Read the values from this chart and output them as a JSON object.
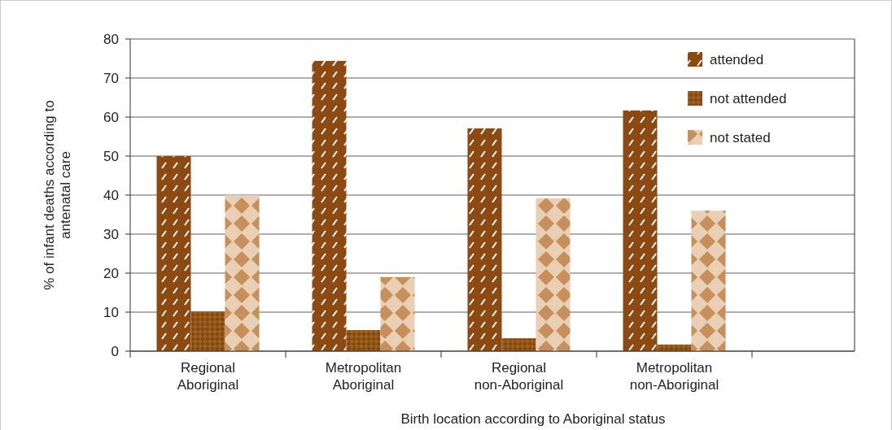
{
  "chart_data": {
    "type": "bar",
    "xlabel": "Birth location according to Aboriginal status",
    "ylabel": "% of infant deaths according to antenatal care",
    "categories": [
      "Regional Aboriginal",
      "Metropolitan Aboriginal",
      "Regional non-Aboriginal",
      "Metropolitan non-Aboriginal"
    ],
    "series": [
      {
        "name": "attended",
        "color": "#8c4a12",
        "values": [
          50,
          74.4,
          57.1,
          61.7
        ]
      },
      {
        "name": "not attended",
        "color": "#a0601e",
        "values": [
          10.2,
          5.4,
          3.3,
          1.7
        ]
      },
      {
        "name": "not stated",
        "color": "#e9cfb4",
        "values": [
          40,
          19,
          39.2,
          36
        ]
      }
    ],
    "ylim": [
      0,
      80
    ],
    "yticks": [
      0,
      10,
      20,
      30,
      40,
      50,
      60,
      70,
      80
    ],
    "grid": "y",
    "legend": "top right"
  }
}
